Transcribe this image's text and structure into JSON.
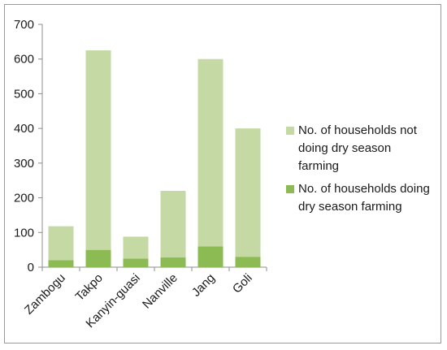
{
  "chart_data": {
    "type": "bar",
    "stacked": true,
    "categories": [
      "Zambogu",
      "Takpo",
      "Kanyin-guasi",
      "Nanville",
      "Jang",
      "Goli"
    ],
    "series": [
      {
        "name": "No. of households doing dry season farming",
        "color": "#8dbb53",
        "values": [
          20,
          50,
          25,
          28,
          60,
          30
        ]
      },
      {
        "name": "No. of households not doing dry season farming",
        "color": "#c4d9a4",
        "values": [
          98,
          575,
          63,
          192,
          540,
          370
        ]
      }
    ],
    "ylim": [
      0,
      700
    ],
    "yticks": [
      0,
      100,
      200,
      300,
      400,
      500,
      600,
      700
    ],
    "grid": false,
    "legend_position": "right"
  }
}
